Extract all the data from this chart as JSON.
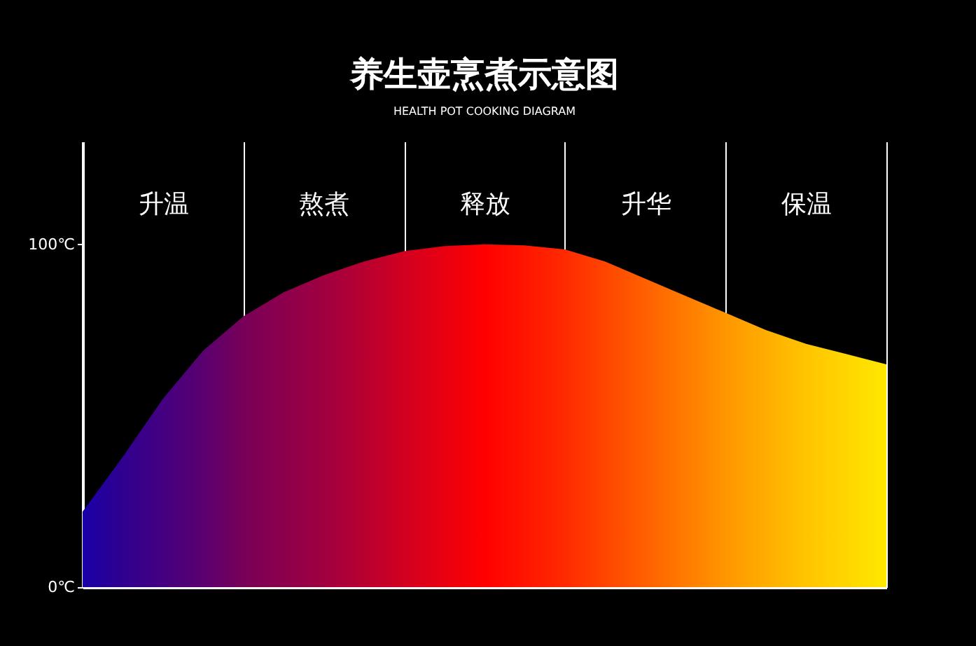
{
  "chart_data": {
    "type": "area",
    "title": "养生壶烹煮示意图",
    "subtitle": "HEALTH POT COOKING DIAGRAM",
    "categories": [
      null,
      null,
      "升温",
      null,
      null,
      null,
      "熬煮",
      null,
      null,
      null,
      "释放",
      null,
      null,
      null,
      "升华",
      null,
      null,
      null,
      "保温",
      null,
      null
    ],
    "series": [
      {
        "colors": [
          "#1a00a8",
          "#30008f",
          "#440080",
          "#5a0070",
          "#780058",
          "#8c004c",
          "#a00040",
          "#b80030",
          "#d20020",
          "#e80010",
          "#ff0000",
          "#ff1500",
          "#ff2a00",
          "#ff4500",
          "#ff6000",
          "#ff7b00",
          "#ff9600",
          "#ffad00",
          "#ffc400",
          "#ffd600",
          "#ffe800"
        ],
        "values": [
          22,
          38,
          55,
          69,
          79,
          86,
          91,
          95,
          98,
          99.5,
          100,
          99.7,
          98.5,
          95,
          90,
          85,
          80,
          75,
          71,
          68,
          65
        ]
      }
    ],
    "ylim": [
      0,
      130
    ],
    "yticks": [
      {
        "value": 0,
        "label": "0℃"
      },
      {
        "value": 100,
        "label": "100℃"
      }
    ],
    "grid": "x"
  }
}
